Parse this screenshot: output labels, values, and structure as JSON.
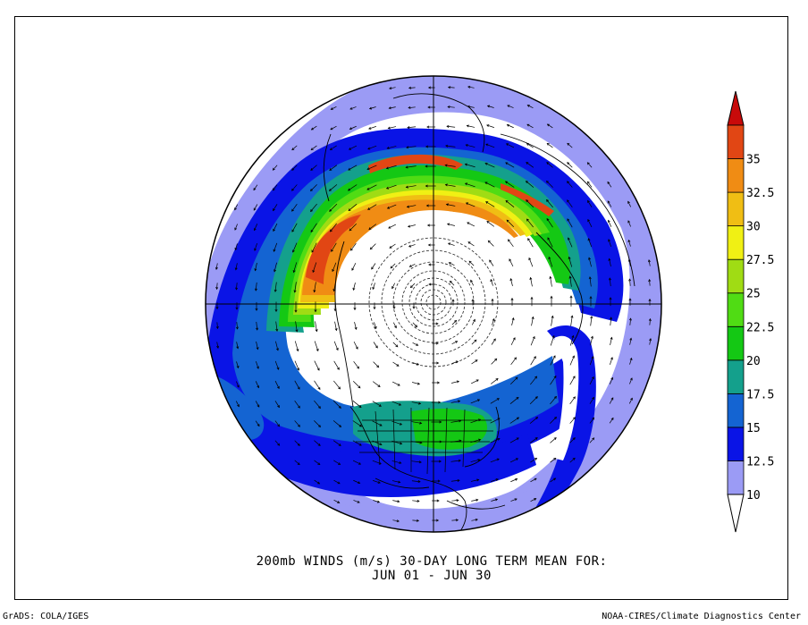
{
  "map": {
    "projection": "north-polar-stereographic",
    "quantity": "200mb wind speed (m/s)",
    "shading_colors": [
      "#9b9bf5",
      "#0a14e6",
      "#1464d2",
      "#14a08c",
      "#14c814",
      "#50dc14",
      "#a0dc14",
      "#f0f014",
      "#f0be14",
      "#f08c14",
      "#e14614",
      "#c80a0a"
    ]
  },
  "colorbar": {
    "levels": [
      "10",
      "12.5",
      "15",
      "17.5",
      "20",
      "22.5",
      "25",
      "27.5",
      "30",
      "32.5",
      "35"
    ],
    "colors": [
      "#9b9bf5",
      "#0a14e6",
      "#1464d2",
      "#14a08c",
      "#14c814",
      "#50dc14",
      "#a0dc14",
      "#f0f014",
      "#f0be14",
      "#f08c14",
      "#e14614"
    ],
    "top_arrow_color": "#c80a0a",
    "bottom_arrow_color": "#ffffff"
  },
  "caption": {
    "line1": "200mb WINDS (m/s)   30-DAY LONG TERM MEAN FOR:",
    "line2": "JUN 01 - JUN 30"
  },
  "footer": {
    "left": "GrADS: COLA/IGES",
    "right": "NOAA-CIRES/Climate Diagnostics Center"
  }
}
